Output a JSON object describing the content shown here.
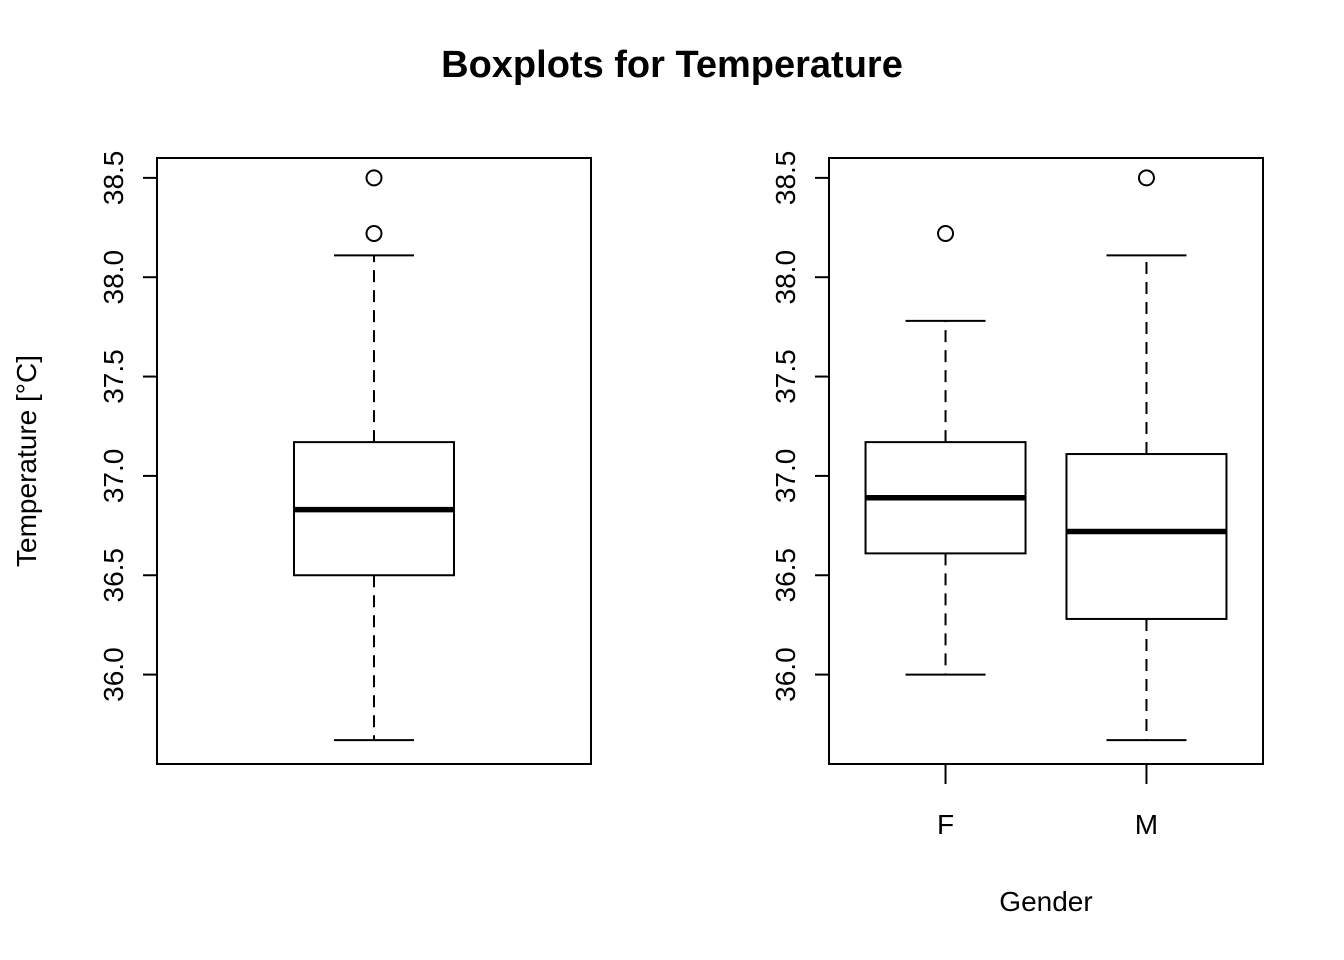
{
  "title": "Boxplots for Temperature",
  "chart_data": [
    {
      "type": "boxplot",
      "ylabel": "Temperature [°C]",
      "xlabel": "",
      "ylim": [
        35.55,
        38.6
      ],
      "yticks": [
        36.0,
        36.5,
        37.0,
        37.5,
        38.0,
        38.5
      ],
      "ytick_labels": [
        "36.0",
        "36.5",
        "37.0",
        "37.5",
        "38.0",
        "38.5"
      ],
      "categories": [
        ""
      ],
      "boxes": [
        {
          "name": "",
          "whisker_low": 35.67,
          "q1": 36.5,
          "median": 36.83,
          "q3": 37.17,
          "whisker_high": 38.11,
          "outliers": [
            38.22,
            38.5
          ]
        }
      ]
    },
    {
      "type": "boxplot",
      "ylabel": "",
      "xlabel": "Gender",
      "ylim": [
        35.55,
        38.6
      ],
      "yticks": [
        36.0,
        36.5,
        37.0,
        37.5,
        38.0,
        38.5
      ],
      "ytick_labels": [
        "36.0",
        "36.5",
        "37.0",
        "37.5",
        "38.0",
        "38.5"
      ],
      "categories": [
        "F",
        "M"
      ],
      "boxes": [
        {
          "name": "F",
          "whisker_low": 36.0,
          "q1": 36.61,
          "median": 36.89,
          "q3": 37.17,
          "whisker_high": 37.78,
          "outliers": [
            38.22
          ]
        },
        {
          "name": "M",
          "whisker_low": 35.67,
          "q1": 36.28,
          "median": 36.72,
          "q3": 37.11,
          "whisker_high": 38.11,
          "outliers": [
            38.5
          ]
        }
      ]
    }
  ]
}
